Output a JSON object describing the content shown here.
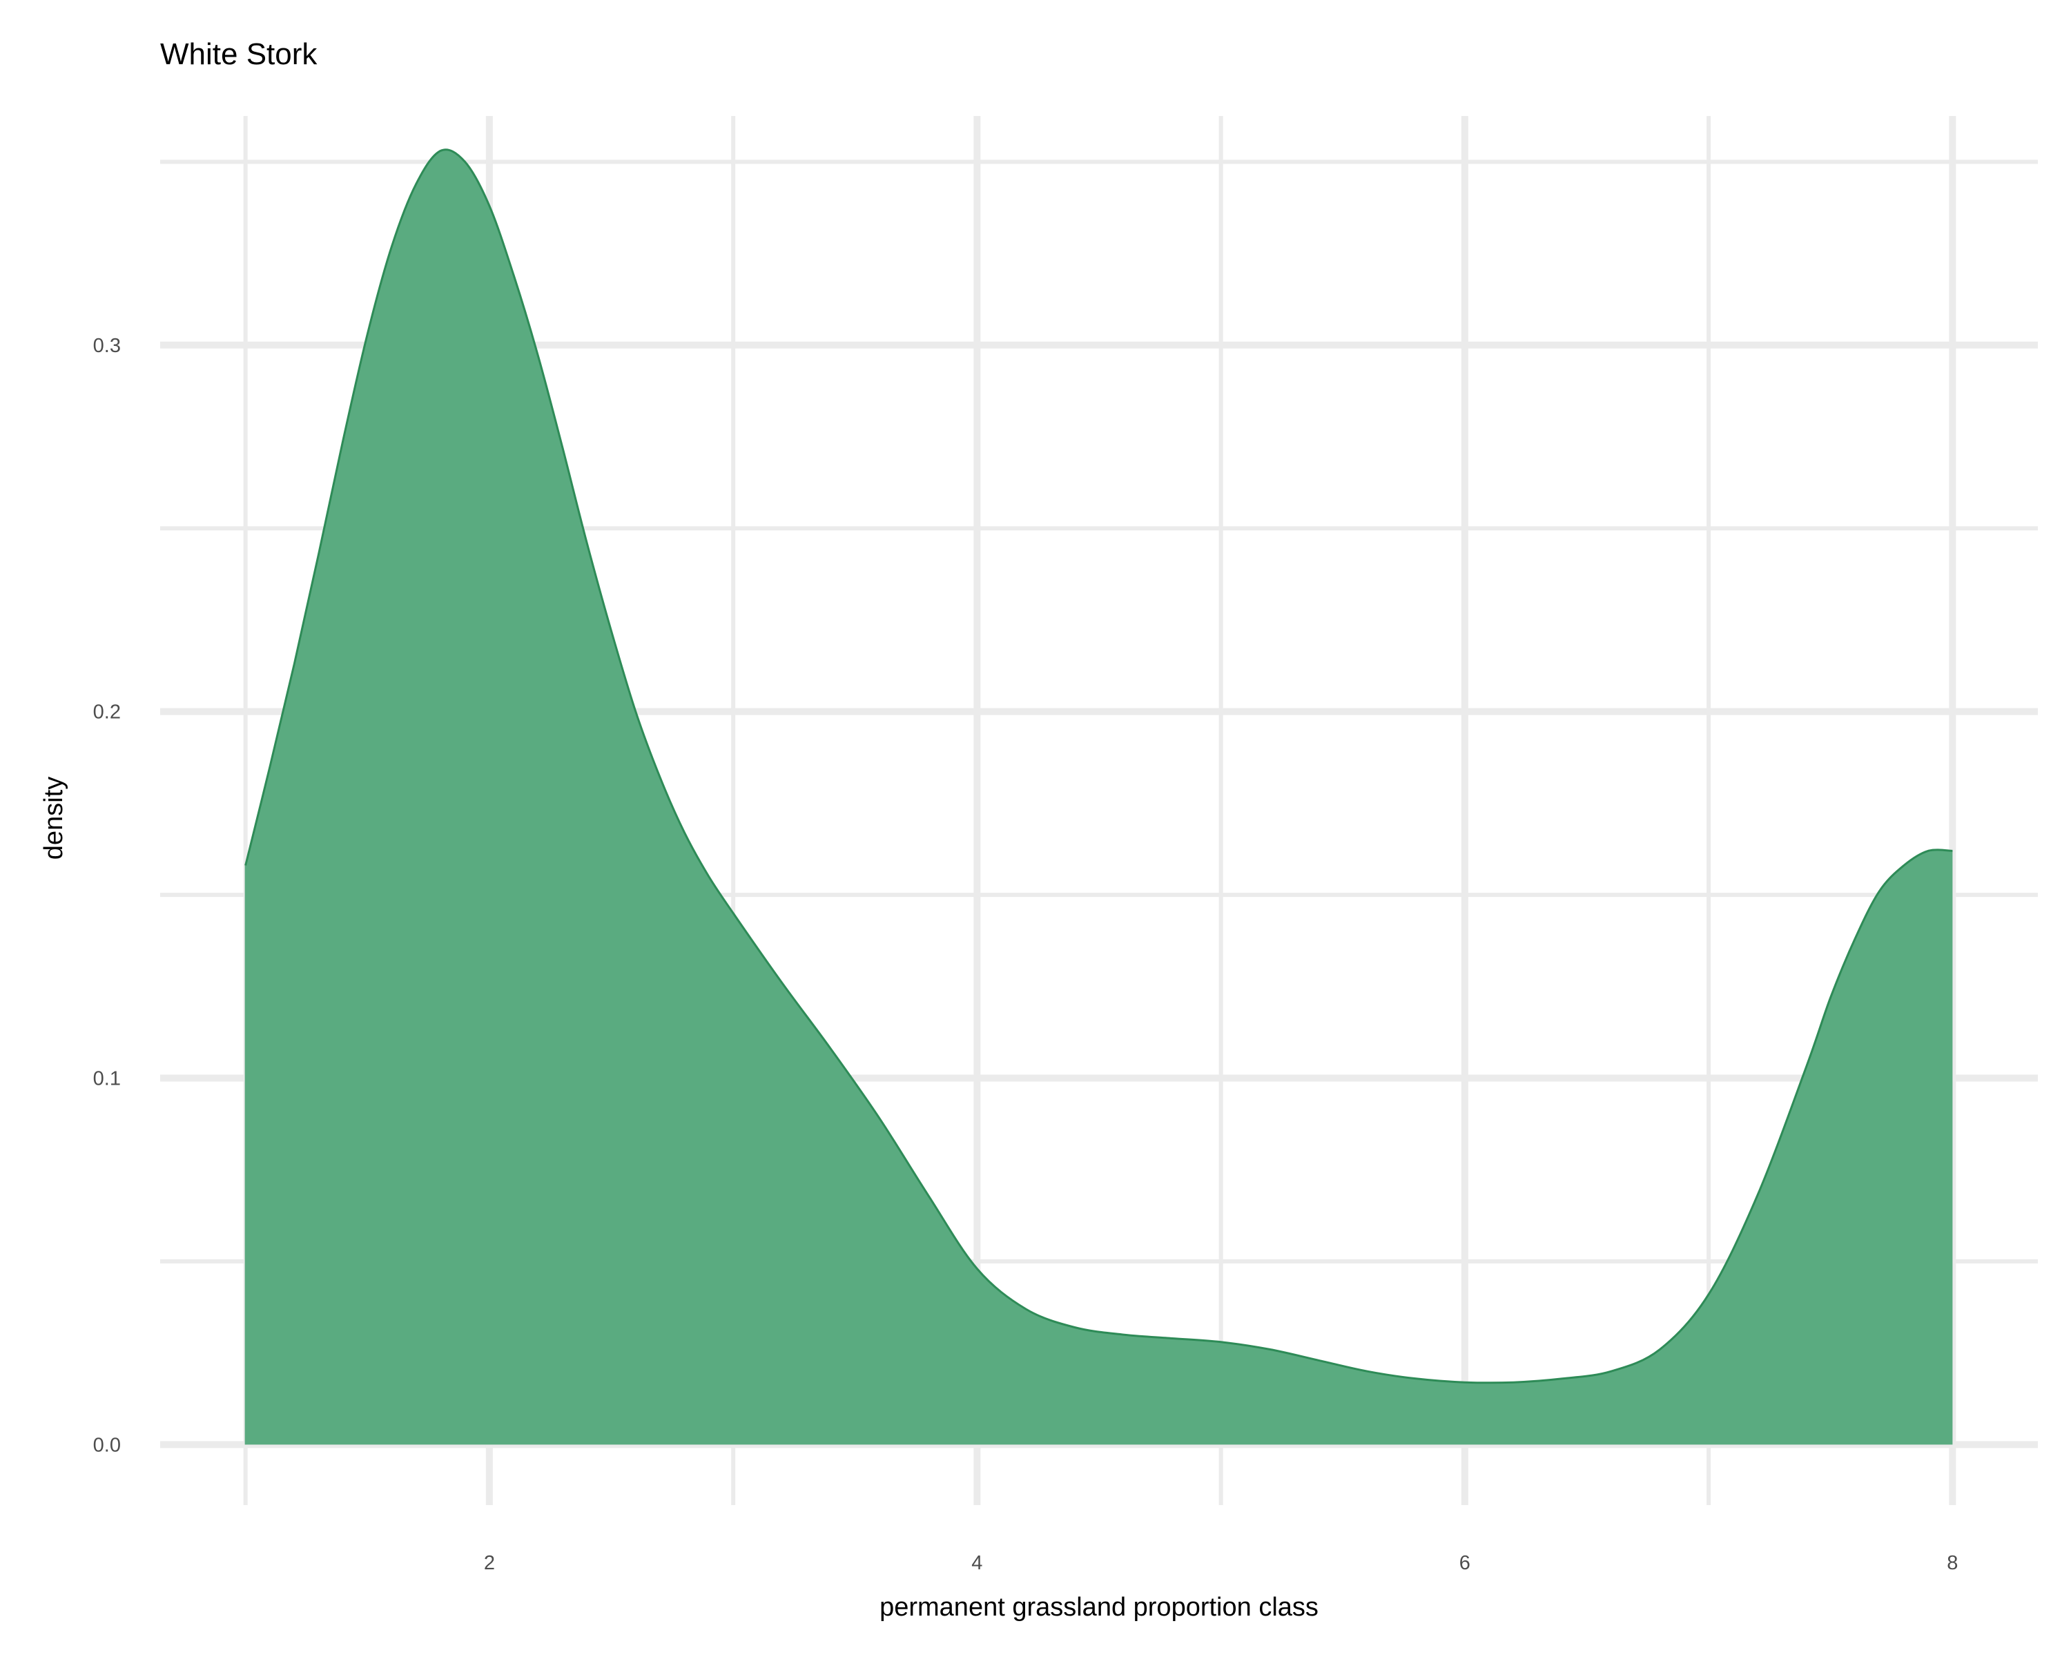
{
  "chart_data": {
    "type": "area",
    "title": "White Stork",
    "xlabel": "permanent grassland proportion class",
    "ylabel": "density",
    "xlim": [
      0.65,
      8.35
    ],
    "ylim": [
      -0.0165,
      0.3625
    ],
    "x_ticks": [
      2,
      4,
      6,
      8
    ],
    "x_tick_labels": [
      "2",
      "4",
      "6",
      "8"
    ],
    "x_minor_ticks": [
      1,
      3,
      5,
      7
    ],
    "y_ticks": [
      0.0,
      0.1,
      0.2,
      0.3
    ],
    "y_tick_labels": [
      "0.0",
      "0.1",
      "0.2",
      "0.3"
    ],
    "y_minor_ticks": [
      0.05,
      0.15,
      0.25,
      0.35
    ],
    "grid": true,
    "legend": "none",
    "colors": {
      "fill": "#5aab80",
      "line": "#2e8b57",
      "grid": "#ebebeb"
    },
    "series": [
      {
        "name": "density",
        "x": [
          1.0,
          1.1,
          1.2,
          1.3,
          1.4,
          1.5,
          1.6,
          1.7,
          1.8,
          1.9,
          2.0,
          2.1,
          2.2,
          2.3,
          2.4,
          2.5,
          2.6,
          2.7,
          2.8,
          2.9,
          3.0,
          3.2,
          3.4,
          3.6,
          3.8,
          4.0,
          4.2,
          4.4,
          4.6,
          4.8,
          5.0,
          5.2,
          5.4,
          5.6,
          5.8,
          6.0,
          6.2,
          6.4,
          6.6,
          6.8,
          7.0,
          7.2,
          7.4,
          7.5,
          7.6,
          7.7,
          7.8,
          7.9,
          8.0
        ],
        "values": [
          0.158,
          0.185,
          0.213,
          0.243,
          0.274,
          0.303,
          0.327,
          0.344,
          0.353,
          0.35,
          0.338,
          0.319,
          0.297,
          0.272,
          0.246,
          0.222,
          0.2,
          0.182,
          0.167,
          0.155,
          0.145,
          0.126,
          0.108,
          0.089,
          0.068,
          0.048,
          0.037,
          0.032,
          0.03,
          0.029,
          0.028,
          0.026,
          0.023,
          0.02,
          0.018,
          0.017,
          0.017,
          0.018,
          0.02,
          0.026,
          0.041,
          0.068,
          0.103,
          0.122,
          0.138,
          0.151,
          0.158,
          0.162,
          0.162
        ]
      }
    ]
  }
}
